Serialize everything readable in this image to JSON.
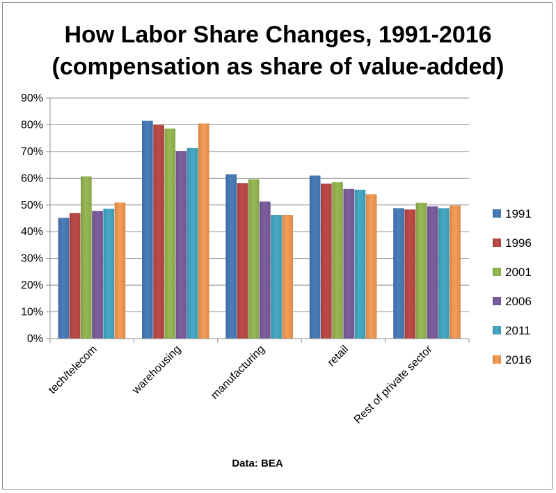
{
  "chart_data": {
    "type": "bar",
    "title": "How Labor Share Changes, 1991-2016",
    "subtitle": "(compensation as share of value-added)",
    "source": "Data: BEA",
    "xlabel": "",
    "ylabel": "",
    "ylim": [
      0,
      90
    ],
    "ytick_step": 10,
    "ytick_suffix": "%",
    "grid": true,
    "legend_position": "right",
    "categories": [
      "tech/telecom",
      "warehousing",
      "manufacturing",
      "retail",
      "Rest of private sector"
    ],
    "series": [
      {
        "name": "1991",
        "color": "#4a7ebb",
        "values": [
          45.2,
          81.5,
          61.5,
          61.0,
          48.8
        ]
      },
      {
        "name": "1996",
        "color": "#be4b48",
        "values": [
          47.0,
          80.0,
          58.2,
          58.0,
          48.3
        ]
      },
      {
        "name": "2001",
        "color": "#98b954",
        "values": [
          60.7,
          78.6,
          59.6,
          58.5,
          50.8
        ]
      },
      {
        "name": "2006",
        "color": "#7d5fa0",
        "values": [
          47.8,
          70.2,
          51.3,
          56.0,
          49.5
        ]
      },
      {
        "name": "2011",
        "color": "#46aac5",
        "values": [
          48.6,
          71.3,
          46.3,
          55.7,
          48.8
        ]
      },
      {
        "name": "2016",
        "color": "#f59d56",
        "values": [
          50.9,
          80.5,
          46.3,
          54.0,
          49.8
        ]
      }
    ]
  }
}
